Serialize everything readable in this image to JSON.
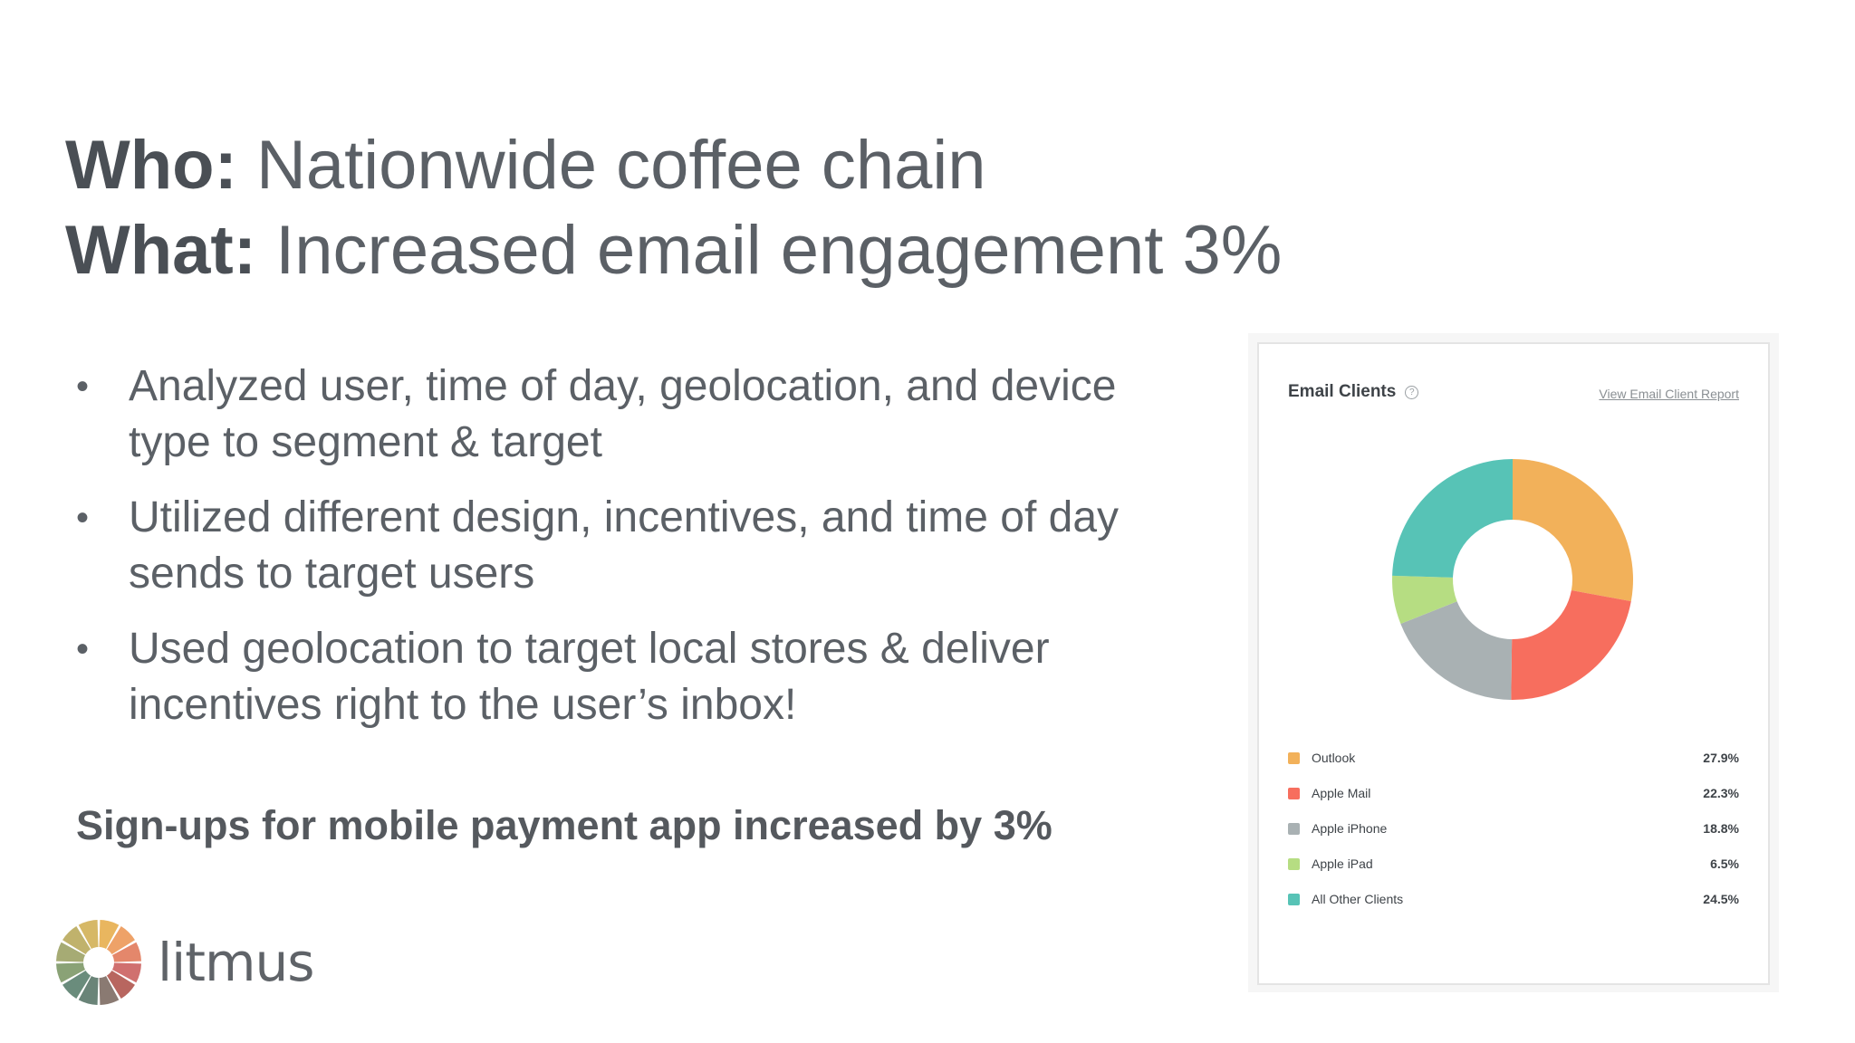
{
  "heading": {
    "line1_bold": "Who:",
    "line1_text": " Nationwide coffee chain",
    "line2_bold": "What:",
    "line2_text": " Increased email engagement 3%"
  },
  "bullets": [
    "Analyzed user, time of day, geolocation, and device type to segment & target",
    "Utilized different design, incentives, and time of day sends to target users",
    "Used geolocation to target local stores & deliver incentives right to the user’s inbox!"
  ],
  "bullet_symbol": "•",
  "signups": "Sign-ups for mobile payment app increased by 3%",
  "logo": {
    "word": "litmus",
    "petal_colors": [
      "#e9b65f",
      "#eea268",
      "#e4876b",
      "#d0706f",
      "#b8665f",
      "#8a7a72",
      "#6a8478",
      "#6a8c7c",
      "#8aa276",
      "#a6ab74",
      "#c0b26c",
      "#d6b866"
    ]
  },
  "card": {
    "title": "Email Clients",
    "help_icon": "help-circle-icon",
    "help_glyph": "?",
    "link": "View Email Client Report"
  },
  "chart_data": {
    "type": "pie",
    "donut": true,
    "title": "Email Clients",
    "categories": [
      "Outlook",
      "Apple Mail",
      "Apple iPhone",
      "Apple iPad",
      "All Other Clients"
    ],
    "values": [
      27.9,
      22.3,
      18.8,
      6.5,
      24.5
    ],
    "value_labels": [
      "27.9%",
      "22.3%",
      "18.8%",
      "6.5%",
      "24.5%"
    ],
    "colors": [
      "#f2b15a",
      "#f76e5e",
      "#a9b1b3",
      "#b6dd82",
      "#57c3b6"
    ],
    "legend_position": "bottom"
  }
}
